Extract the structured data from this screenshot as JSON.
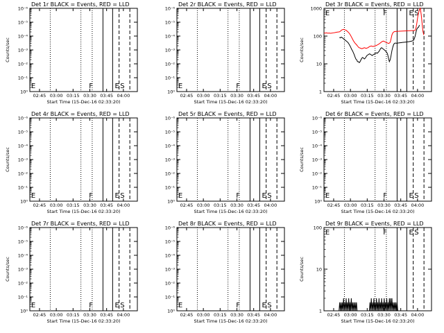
{
  "chart_data": [
    {
      "type": "line",
      "title": "Det 1r BLACK = Events, RED = LLD",
      "xlabel": "Start Time (15-Dec-16 02:33:20)",
      "ylabel": "Counts/sec",
      "scale": "log",
      "y_tick_labels": [
        "10⁰",
        "10⁻¹",
        "10⁻²",
        "10⁻³",
        "10⁻⁴",
        "10⁻⁵",
        "10⁻⁶"
      ],
      "x_tick_labels": [
        "02:45",
        "03:00",
        "03:15",
        "03:30",
        "03:45",
        "04:00"
      ],
      "markers": [
        "E",
        "F",
        "E",
        "S"
      ],
      "series": []
    },
    {
      "type": "line",
      "title": "Det 2r BLACK = Events, RED = LLD",
      "xlabel": "Start Time (15-Dec-16 02:33:20)",
      "ylabel": "",
      "scale": "log",
      "y_tick_labels": [
        "10⁰",
        "10⁻¹",
        "10⁻²",
        "10⁻³",
        "10⁻⁴",
        "10⁻⁵",
        "10⁻⁶"
      ],
      "x_tick_labels": [
        "02:45",
        "03:00",
        "03:15",
        "03:30",
        "03:45",
        "04:00"
      ],
      "markers": [
        "E",
        "F",
        "E",
        "S"
      ],
      "series": []
    },
    {
      "type": "line",
      "title": "Det 3r BLACK = Events, RED = LLD",
      "xlabel": "Start Time (15-Dec-16 02:33:20)",
      "ylabel": "Counts/sec",
      "scale": "log",
      "y_tick_labels": [
        "1",
        "10",
        "100",
        "1000"
      ],
      "x_tick_labels": [
        "02:45",
        "03:00",
        "03:15",
        "03:30",
        "03:45",
        "04:00"
      ],
      "markers": [
        "E",
        "F",
        "E",
        "S"
      ],
      "series": [
        {
          "color": "#000000",
          "x": [
            0.144,
            0.152,
            0.16,
            0.168,
            0.176,
            0.184,
            0.192,
            0.2,
            0.208,
            0.216,
            0.224,
            0.232,
            0.24,
            0.248,
            0.256,
            0.264,
            0.272,
            0.28,
            0.288,
            0.296,
            0.304,
            0.312,
            0.32,
            0.328,
            0.336,
            0.344,
            0.352,
            0.36,
            0.368,
            0.376,
            0.384,
            0.392,
            0.4,
            0.408,
            0.416,
            0.424,
            0.432,
            0.44,
            0.448,
            0.456,
            0.464,
            0.472,
            0.48,
            0.488,
            0.496,
            0.504,
            0.512,
            0.52,
            0.528,
            0.536,
            0.544,
            0.552,
            0.56,
            0.568,
            0.576,
            0.584,
            0.592,
            0.6,
            0.608,
            0.616,
            0.624,
            0.632,
            0.64,
            0.648,
            0.656,
            0.664,
            0.672,
            0.68,
            0.688,
            0.696,
            0.704,
            0.712,
            0.72,
            0.728,
            0.736,
            0.744,
            0.752,
            0.76,
            0.768,
            0.776,
            0.784,
            0.792,
            0.8,
            0.808,
            0.816,
            0.824,
            0.832,
            0.84,
            0.848,
            0.856,
            0.864,
            0.872,
            0.88,
            0.888
          ],
          "y": [
            90,
            86,
            92,
            88,
            84,
            78,
            74,
            70,
            66,
            62,
            58,
            52,
            46,
            40,
            34,
            30,
            26,
            22,
            18,
            15,
            14,
            12,
            12,
            11,
            12,
            14,
            16,
            17,
            16,
            15,
            16,
            18,
            20,
            21,
            22,
            23,
            22,
            21,
            20,
            21,
            22,
            23,
            24,
            25,
            24,
            26,
            28,
            32,
            36,
            38,
            36,
            34,
            32,
            30,
            28,
            26,
            22,
            16,
            12,
            14,
            20,
            30,
            40,
            50,
            55,
            56,
            55,
            56,
            56,
            57,
            57,
            58,
            58,
            59,
            59,
            60,
            60,
            61,
            61,
            62,
            62,
            63,
            64,
            65,
            66,
            68,
            70,
            80,
            100,
            140,
            180,
            200,
            210,
            250
          ]
        },
        {
          "color": "#ff0000",
          "x": [
            0.0,
            0.012,
            0.024,
            0.036,
            0.048,
            0.06,
            0.072,
            0.084,
            0.096,
            0.108,
            0.12,
            0.132,
            0.144,
            0.152,
            0.16,
            0.168,
            0.176,
            0.184,
            0.192,
            0.2,
            0.208,
            0.216,
            0.224,
            0.232,
            0.24,
            0.248,
            0.256,
            0.264,
            0.272,
            0.28,
            0.288,
            0.296,
            0.304,
            0.312,
            0.32,
            0.328,
            0.336,
            0.344,
            0.352,
            0.36,
            0.368,
            0.376,
            0.384,
            0.392,
            0.4,
            0.408,
            0.416,
            0.424,
            0.432,
            0.44,
            0.448,
            0.456,
            0.464,
            0.472,
            0.48,
            0.488,
            0.496,
            0.504,
            0.512,
            0.52,
            0.528,
            0.536,
            0.544,
            0.552,
            0.56,
            0.568,
            0.576,
            0.584,
            0.592,
            0.6,
            0.608,
            0.616,
            0.624,
            0.632,
            0.64,
            0.648,
            0.656,
            0.664,
            0.672,
            0.68,
            0.688,
            0.696,
            0.704,
            0.712,
            0.72,
            0.728,
            0.736,
            0.744,
            0.752,
            0.76,
            0.768,
            0.776,
            0.784,
            0.792,
            0.8,
            0.808,
            0.816,
            0.824,
            0.832,
            0.84,
            0.848,
            0.856,
            0.864,
            0.872,
            0.88,
            0.888,
            0.896,
            0.904,
            0.912,
            0.92,
            0.928
          ],
          "y": [
            130,
            128,
            130,
            127,
            129,
            126,
            128,
            130,
            132,
            135,
            138,
            140,
            142,
            150,
            160,
            168,
            172,
            175,
            170,
            165,
            160,
            150,
            140,
            130,
            118,
            105,
            92,
            80,
            70,
            62,
            56,
            52,
            48,
            44,
            40,
            38,
            37,
            36,
            35,
            36,
            37,
            38,
            37,
            36,
            37,
            38,
            40,
            42,
            43,
            44,
            43,
            42,
            43,
            44,
            45,
            46,
            48,
            50,
            52,
            55,
            58,
            62,
            64,
            66,
            64,
            62,
            60,
            58,
            56,
            54,
            56,
            60,
            80,
            110,
            130,
            140,
            145,
            146,
            147,
            148,
            149,
            150,
            150,
            151,
            151,
            152,
            152,
            153,
            153,
            154,
            154,
            155,
            155,
            156,
            156,
            157,
            157,
            158,
            158,
            159,
            160,
            200,
            300,
            500,
            700,
            900,
            1000,
            600,
            300,
            150,
            110
          ]
        }
      ]
    },
    {
      "type": "line",
      "title": "Det 4r BLACK = Events, RED = LLD",
      "xlabel": "Start Time (15-Dec-16 02:33:20)",
      "ylabel": "Counts/sec",
      "scale": "log",
      "y_tick_labels": [
        "10⁰",
        "10⁻¹",
        "10⁻²",
        "10⁻³",
        "10⁻⁴",
        "10⁻⁵",
        "10⁻⁶"
      ],
      "x_tick_labels": [
        "02:45",
        "03:00",
        "03:15",
        "03:30",
        "03:45",
        "04:00"
      ],
      "markers": [
        "E",
        "F",
        "E",
        "S"
      ],
      "series": []
    },
    {
      "type": "line",
      "title": "Det 5r BLACK = Events, RED = LLD",
      "xlabel": "Start Time (15-Dec-16 02:33:20)",
      "ylabel": "",
      "scale": "log",
      "y_tick_labels": [
        "10⁰",
        "10⁻¹",
        "10⁻²",
        "10⁻³",
        "10⁻⁴",
        "10⁻⁵",
        "10⁻⁶"
      ],
      "x_tick_labels": [
        "02:45",
        "03:00",
        "03:15",
        "03:30",
        "03:45",
        "04:00"
      ],
      "markers": [
        "E",
        "F",
        "E",
        "S"
      ],
      "series": []
    },
    {
      "type": "line",
      "title": "Det 6r BLACK = Events, RED = LLD",
      "xlabel": "Start Time (15-Dec-16 02:33:20)",
      "ylabel": "Counts/sec",
      "scale": "log",
      "y_tick_labels": [
        "10⁰",
        "10⁻¹",
        "10⁻²",
        "10⁻³",
        "10⁻⁴",
        "10⁻⁵",
        "10⁻⁶"
      ],
      "x_tick_labels": [
        "02:45",
        "03:00",
        "03:15",
        "03:30",
        "03:45",
        "04:00"
      ],
      "markers": [
        "E",
        "F",
        "E",
        "S"
      ],
      "series": []
    },
    {
      "type": "line",
      "title": "Det 7r BLACK = Events, RED = LLD",
      "xlabel": "Start Time (15-Dec-16 02:33:20)",
      "ylabel": "Counts/sec",
      "scale": "log",
      "y_tick_labels": [
        "10⁰",
        "10⁻¹",
        "10⁻²",
        "10⁻³",
        "10⁻⁴",
        "10⁻⁵",
        "10⁻⁶"
      ],
      "x_tick_labels": [
        "02:45",
        "03:00",
        "03:15",
        "03:30",
        "03:45",
        "04:00"
      ],
      "markers": [
        "E",
        "F",
        "E",
        "S"
      ],
      "series": []
    },
    {
      "type": "line",
      "title": "Det 8r BLACK = Events, RED = LLD",
      "xlabel": "Start Time (15-Dec-16 02:33:20)",
      "ylabel": "",
      "scale": "log",
      "y_tick_labels": [
        "10⁰",
        "10⁻¹",
        "10⁻²",
        "10⁻³",
        "10⁻⁴",
        "10⁻⁵",
        "10⁻⁶"
      ],
      "x_tick_labels": [
        "02:45",
        "03:00",
        "03:15",
        "03:30",
        "03:45",
        "04:00"
      ],
      "markers": [
        "E",
        "F",
        "E",
        "S"
      ],
      "series": []
    },
    {
      "type": "line",
      "title": "Det 9r BLACK = Events, RED = LLD",
      "xlabel": "Start Time (15-Dec-16 02:33:20)",
      "ylabel": "Counts/sec",
      "scale": "log",
      "y_tick_labels": [
        "1",
        "10",
        "100"
      ],
      "x_tick_labels": [
        "02:45",
        "03:00",
        "03:15",
        "03:30",
        "03:45",
        "04:00"
      ],
      "markers": [
        "E",
        "F",
        "E",
        "S"
      ],
      "series": [
        {
          "color": "#000000",
          "x": [
            0.14,
            0.146,
            0.152,
            0.158,
            0.164,
            0.17,
            0.176,
            0.182,
            0.188,
            0.194,
            0.2,
            0.206,
            0.212,
            0.218,
            0.224,
            0.23,
            0.236,
            0.242,
            0.248,
            0.254,
            0.26,
            0.266,
            0.272,
            0.278,
            0.284,
            0.29,
            0.296,
            0.302,
            0.308,
            0.314,
            0.32,
            0.326,
            0.332,
            0.338,
            0.344,
            0.35,
            0.356,
            0.362,
            0.368,
            0.374,
            0.38,
            0.386,
            0.392,
            0.398,
            0.404,
            0.41,
            0.416,
            0.422,
            0.428,
            0.434,
            0.44,
            0.446,
            0.452,
            0.458,
            0.464,
            0.47,
            0.476,
            0.482,
            0.488,
            0.494,
            0.5,
            0.506,
            0.512,
            0.518,
            0.524,
            0.53,
            0.536,
            0.542,
            0.548,
            0.554,
            0.56,
            0.566,
            0.572,
            0.578,
            0.584,
            0.59,
            0.596,
            0.602,
            0.608,
            0.614,
            0.62,
            0.626,
            0.632,
            0.638,
            0.644,
            0.65,
            0.656,
            0.662,
            0.668,
            0.674,
            0.68,
            0.686
          ],
          "y": [
            1,
            1.6,
            1,
            1.6,
            1,
            1.6,
            1,
            2,
            1,
            1.6,
            1,
            2,
            1,
            1.6,
            1,
            2,
            1,
            1.6,
            1,
            2,
            1,
            1.6,
            1,
            1.6,
            1,
            1.6,
            1,
            1.6,
            1,
            1,
            1,
            1,
            1,
            1,
            1,
            1,
            1,
            1,
            1,
            1,
            1,
            1,
            1,
            1,
            1,
            1,
            1,
            1,
            1.6,
            1,
            2,
            1,
            1.6,
            1,
            2,
            1,
            1.6,
            1,
            2,
            1,
            1.6,
            1,
            2,
            1,
            1.6,
            1,
            2,
            1,
            1.6,
            1,
            2,
            1,
            1.6,
            1,
            2,
            1,
            1.6,
            1,
            2,
            1,
            2,
            1,
            2,
            1,
            1.6,
            1,
            1.6,
            1,
            1.6,
            1,
            1.6,
            1
          ]
        }
      ]
    }
  ]
}
